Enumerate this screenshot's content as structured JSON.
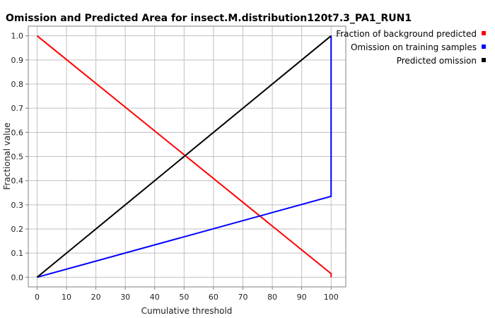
{
  "chart_data": {
    "type": "line",
    "title": "Omission and Predicted Area for insect.M.distribution120t7.3_PA1_RUN1",
    "xlabel": "Cumulative threshold",
    "ylabel": "Fractional value",
    "xlim": [
      -3,
      105
    ],
    "ylim": [
      -0.04,
      1.04
    ],
    "xticks": [
      0,
      10,
      20,
      30,
      40,
      50,
      60,
      70,
      80,
      90,
      100
    ],
    "yticks": [
      0.0,
      0.1,
      0.2,
      0.3,
      0.4,
      0.5,
      0.6,
      0.7,
      0.8,
      0.9,
      1.0
    ],
    "grid": true,
    "legend_position": "top-right, outside plot",
    "series": [
      {
        "name": "Fraction of background predicted",
        "color": "#ff0000",
        "x": [
          0,
          100,
          100
        ],
        "y": [
          1.0,
          0.015,
          0.0
        ]
      },
      {
        "name": "Omission on training samples",
        "color": "#0000ff",
        "x": [
          0,
          100,
          100
        ],
        "y": [
          0.0,
          0.335,
          1.0
        ]
      },
      {
        "name": "Predicted omission",
        "color": "#000000",
        "x": [
          0,
          100
        ],
        "y": [
          0.0,
          1.0
        ]
      }
    ]
  }
}
